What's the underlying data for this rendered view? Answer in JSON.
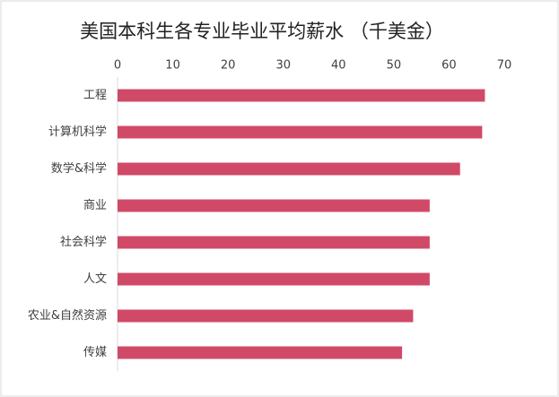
{
  "chart_data": {
    "type": "bar",
    "orientation": "horizontal",
    "title": "美国本科生各专业毕业平均薪水 （千美金）",
    "categories": [
      "工程",
      "计算机科学",
      "数学&科学",
      "商业",
      "社会科学",
      "人文",
      "农业&自然资源",
      "传媒"
    ],
    "values": [
      66.5,
      66,
      62,
      56.5,
      56.5,
      56.5,
      53.5,
      51.5
    ],
    "color": "#d04a67",
    "xlim": [
      0,
      70
    ],
    "xticks": [
      0,
      10,
      20,
      30,
      40,
      50,
      60,
      70
    ],
    "grid": false
  }
}
